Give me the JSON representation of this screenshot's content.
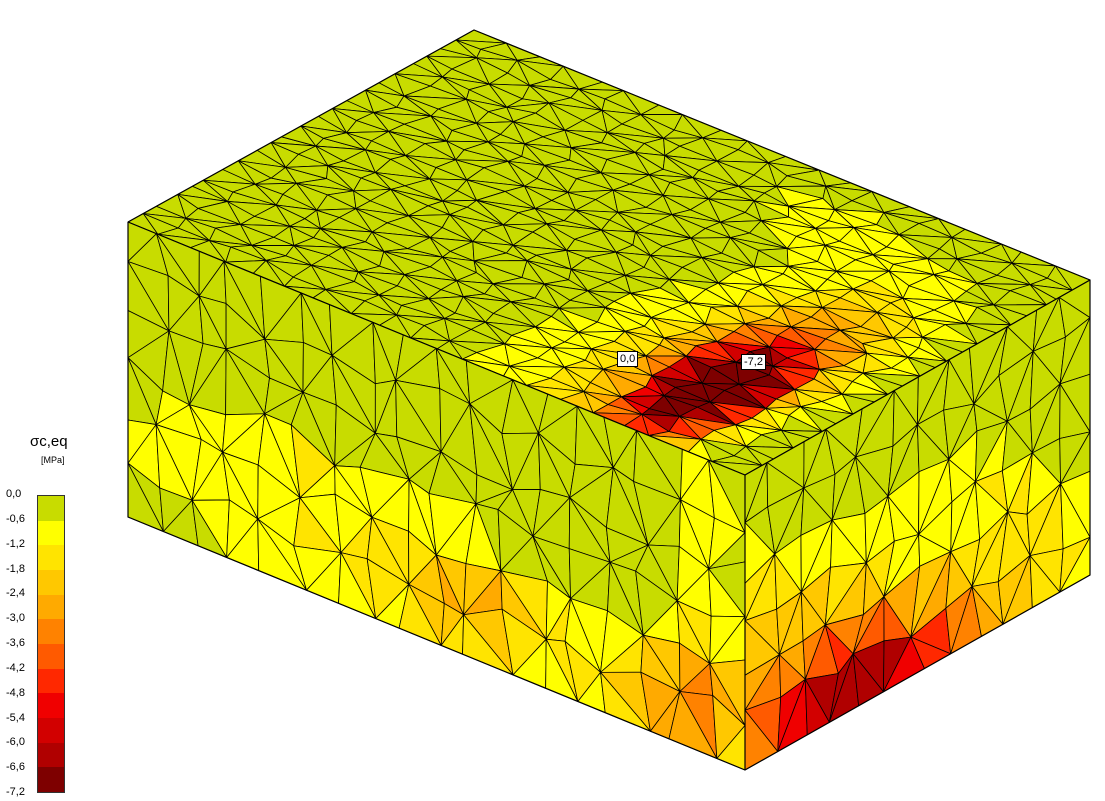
{
  "legend": {
    "title": "σc,eq",
    "unit": "[MPa]",
    "labels": [
      "0,0",
      "-0,6",
      "-1,2",
      "-1,8",
      "-2,4",
      "-3,0",
      "-3,6",
      "-4,2",
      "-4,8",
      "-5,4",
      "-6,0",
      "-6,6",
      "-7,2"
    ],
    "colors": [
      "#c8dc00",
      "#ffff00",
      "#ffe400",
      "#ffc800",
      "#ffaa00",
      "#ff8200",
      "#ff5a00",
      "#ff2800",
      "#f00000",
      "#d20000",
      "#b00000",
      "#7e0000"
    ]
  },
  "value_labels": {
    "min_label": "0,0",
    "max_label": "-7,2"
  },
  "mesh": {
    "edge_color": "#000000",
    "value_range": [
      0,
      -7.2
    ]
  }
}
